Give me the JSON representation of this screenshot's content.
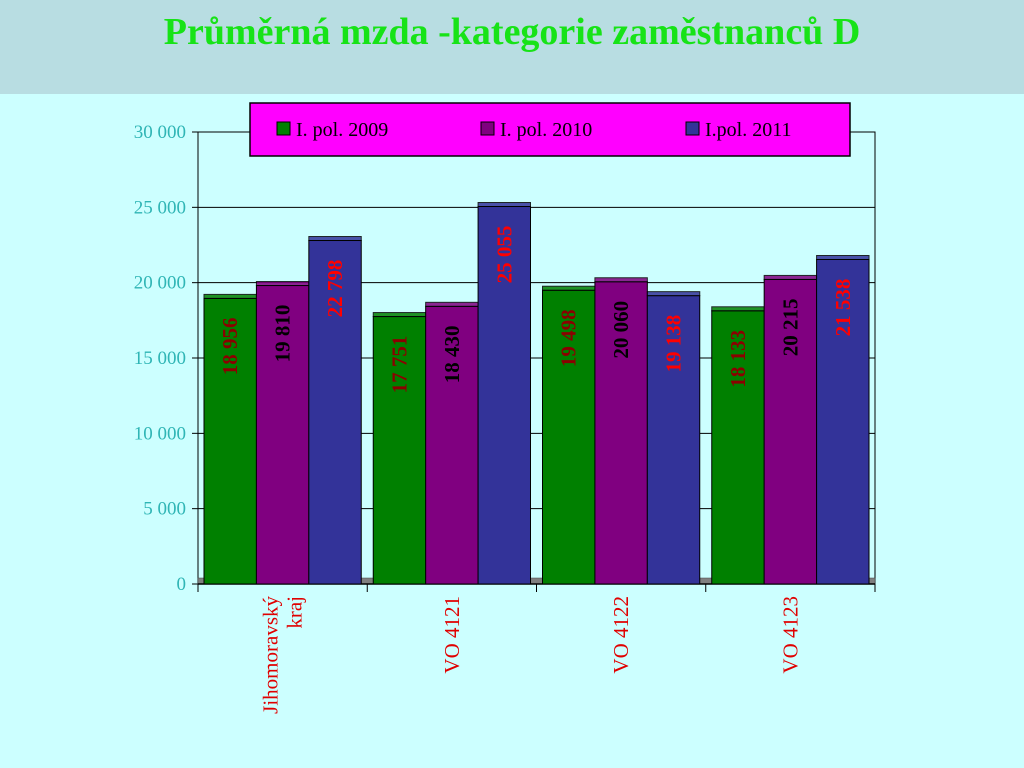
{
  "title": "Průměrná  mzda -kategorie  zaměstnanců  D",
  "colors": {
    "background": "#ccffff",
    "title_bar": "#b8dde2",
    "title_text": "#17e317",
    "legend_bg": "#ff00ff",
    "axis_tick_text": "#2fb5b5",
    "category_text": "#e00000"
  },
  "chart_data": {
    "type": "bar",
    "title": "Průměrná  mzda -kategorie  zaměstnanců  D",
    "categories": [
      "Jihomoravský kraj",
      "VO  4121",
      "VO  4122",
      "VO  4123"
    ],
    "category_lines": [
      [
        "Jihomoravský",
        "kraj"
      ],
      [
        "VO  4121"
      ],
      [
        "VO  4122"
      ],
      [
        "VO  4123"
      ]
    ],
    "series": [
      {
        "name": "I. pol. 2009",
        "color": "#008000",
        "label_color": "#8b0000",
        "values": [
          18956,
          17751,
          19498,
          18133
        ],
        "labels": [
          "18 956",
          "17 751",
          "19 498",
          "18 133"
        ]
      },
      {
        "name": "I. pol. 2010",
        "color": "#800080",
        "label_color": "#000000",
        "values": [
          19810,
          18430,
          20060,
          20215
        ],
        "labels": [
          "19 810",
          "18 430",
          "20 060",
          "20 215"
        ]
      },
      {
        "name": "I.pol. 2011",
        "color": "#333399",
        "label_color": "#ff0000",
        "values": [
          22798,
          25055,
          19138,
          21538
        ],
        "labels": [
          "22 798",
          "25 055",
          "19 138",
          "21 538"
        ]
      }
    ],
    "y_ticks": [
      0,
      5000,
      10000,
      15000,
      20000,
      25000,
      30000
    ],
    "y_tick_labels": [
      "0",
      "5 000",
      "10 000",
      "15 000",
      "20 000",
      "25 000",
      "30 000"
    ],
    "ylim": [
      0,
      30000
    ],
    "grid": true,
    "legend_position": "top"
  }
}
